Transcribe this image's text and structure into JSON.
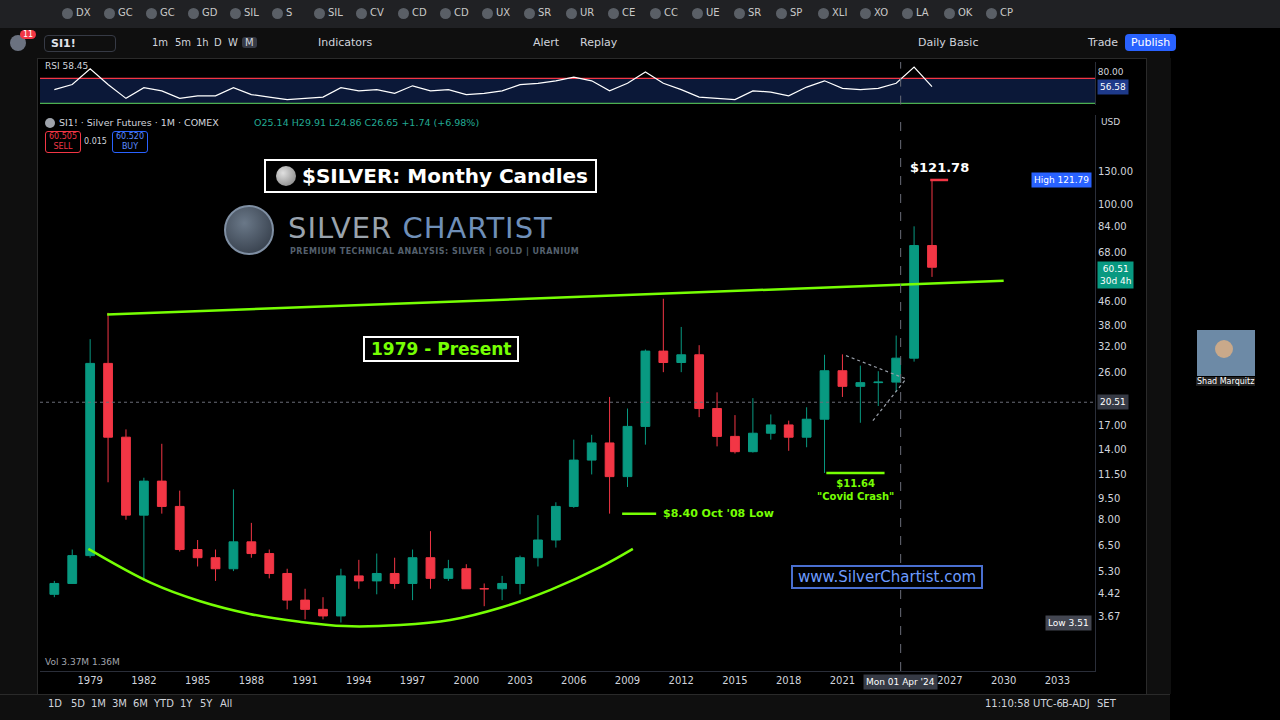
{
  "chart_data": [
    {
      "type": "candlestick",
      "title": "$SILVER: Monthy Candles",
      "subtitle": "1979 - Present",
      "log": "y",
      "grid": false,
      "x": [
        1977,
        1978,
        1979,
        1980,
        1981,
        1982,
        1983,
        1984,
        1985,
        1986,
        1987,
        1988,
        1989,
        1990,
        1991,
        1992,
        1993,
        1994,
        1995,
        1996,
        1997,
        1998,
        1999,
        2000,
        2001,
        2002,
        2003,
        2004,
        2005,
        2006,
        2007,
        2008,
        2009,
        2010,
        2011,
        2012,
        2013,
        2014,
        2015,
        2016,
        2017,
        2018,
        2019,
        2020,
        2021,
        2022,
        2023,
        2024,
        2025,
        2026
      ],
      "open": [
        4.4,
        4.8,
        6.0,
        28,
        15.5,
        8.3,
        10.9,
        8.9,
        6.3,
        5.9,
        5.4,
        6.7,
        6.1,
        5.2,
        4.2,
        3.9,
        3.7,
        5.1,
        4.9,
        5.2,
        4.8,
        5.9,
        5.0,
        5.4,
        4.6,
        4.6,
        4.8,
        5.9,
        6.8,
        8.9,
        12.9,
        14.8,
        11.3,
        16.9,
        30.9,
        28.2,
        30.0,
        19.5,
        15.6,
        13.8,
        16.0,
        17.1,
        15.5,
        17.9,
        26.4,
        23.3,
        24.0,
        24.1,
        29.2,
        72
      ],
      "high": [
        4.9,
        6.3,
        34,
        42,
        16.5,
        11.2,
        14.7,
        10.1,
        6.8,
        6.3,
        10.2,
        7.8,
        6.3,
        5.4,
        4.6,
        4.3,
        5.4,
        5.8,
        6.1,
        5.9,
        6.3,
        7.3,
        5.8,
        5.6,
        4.8,
        5.1,
        6.0,
        8.3,
        9.2,
        15.2,
        15.8,
        21.4,
        19.5,
        31.3,
        47,
        37.5,
        32.4,
        22.2,
        18.5,
        21.2,
        18.6,
        17.7,
        19.7,
        30.0,
        30.1,
        27.5,
        26.3,
        35.0,
        84,
        121.78
      ],
      "low": [
        4.3,
        4.8,
        5.9,
        10.8,
        8.0,
        4.9,
        8.4,
        6.2,
        5.5,
        4.9,
        5.3,
        5.9,
        5.0,
        3.9,
        3.6,
        3.6,
        3.51,
        4.6,
        4.4,
        4.6,
        4.2,
        4.6,
        4.9,
        4.6,
        4.0,
        4.2,
        4.4,
        5.5,
        6.4,
        8.8,
        11.5,
        8.4,
        10.4,
        14.6,
        26.1,
        26.1,
        18.2,
        14.4,
        13.6,
        13.7,
        15.2,
        13.9,
        14.3,
        11.64,
        21.4,
        17.4,
        19.9,
        22.3,
        28.4,
        56
      ],
      "close": [
        4.8,
        6.0,
        28,
        15.5,
        8.3,
        10.9,
        8.9,
        6.3,
        5.9,
        5.4,
        6.7,
        6.1,
        5.2,
        4.2,
        3.9,
        3.7,
        5.1,
        4.9,
        5.2,
        4.8,
        5.9,
        5.0,
        5.4,
        4.6,
        4.6,
        4.8,
        5.9,
        6.8,
        8.9,
        12.9,
        14.8,
        11.3,
        16.9,
        30.9,
        28.2,
        30.0,
        19.5,
        15.6,
        13.8,
        16.0,
        17.1,
        15.5,
        17.9,
        26.4,
        23.3,
        24.0,
        24.1,
        29.2,
        72,
        60.51
      ],
      "xlim": [
        1976.2,
        2035.1
      ],
      "xticks": [
        1979,
        1982,
        1985,
        1988,
        1991,
        1994,
        1997,
        2000,
        2003,
        2006,
        2009,
        2012,
        2015,
        2018,
        2021,
        2027,
        2030,
        2033
      ],
      "ylim": [
        2.38,
        205
      ],
      "yticks": [
        {
          "value": 130,
          "label": "130.00"
        },
        {
          "value": 100,
          "label": "100.00"
        },
        {
          "value": 84,
          "label": "84.00"
        },
        {
          "value": 68,
          "label": "68.00"
        },
        {
          "value": 46,
          "label": "46.00"
        },
        {
          "value": 38,
          "label": "38.00"
        },
        {
          "value": 32,
          "label": "32.00"
        },
        {
          "value": 26,
          "label": "26.00"
        },
        {
          "value": 17,
          "label": "17.00"
        },
        {
          "value": 14,
          "label": "14.00"
        },
        {
          "value": 11.5,
          "label": "11.50"
        },
        {
          "value": 9.5,
          "label": "9.50"
        },
        {
          "value": 8,
          "label": "8.00"
        },
        {
          "value": 6.5,
          "label": "6.50"
        },
        {
          "value": 5.3,
          "label": "5.30"
        },
        {
          "value": 4.42,
          "label": "4.42"
        },
        {
          "value": 3.67,
          "label": "3.67"
        }
      ],
      "trend_lines": [
        {
          "x": [
            1979.95,
            2030
          ],
          "values": [
            41.4,
            54.3
          ],
          "color": "#76ff03",
          "line_style": "solid"
        },
        {
          "x": [
            1978.9,
            1982.4,
            1985.1,
            1987.9,
            1990.7,
            1993.2,
            1996.3,
            1999.1,
            2001.9,
            2004.7,
            2007.5,
            2009.3
          ],
          "values": [
            6.33,
            4.82,
            4.17,
            3.76,
            3.53,
            3.41,
            3.44,
            3.58,
            3.95,
            4.56,
            5.48,
            6.33
          ],
          "color": "#76ff03",
          "line_style": "solid"
        },
        {
          "x": [
            2021.2,
            2024.5
          ],
          "values": [
            29.8,
            24.8
          ],
          "color": "#9aa0aa",
          "line_style": "dotted"
        },
        {
          "x": [
            2022.7,
            2024.5
          ],
          "values": [
            17.7,
            24.5
          ],
          "color": "#9aa0aa",
          "line_style": "dotted"
        }
      ],
      "levels": [
        {
          "label": "$121.78",
          "value": 121.78,
          "x": [
            2025.9,
            2026.9
          ],
          "color": "#f23645"
        },
        {
          "label": "$8.40 Oct '08 Low",
          "value": 8.4,
          "x": [
            2008.7,
            2010.6
          ],
          "color": "#76ff03"
        },
        {
          "label": "$11.64",
          "note": "\"Covid Crash\"",
          "value": 11.64,
          "x": [
            2020.1,
            2023.35
          ],
          "color": "#76ff03"
        }
      ],
      "price_tags": [
        {
          "value": 121.79,
          "label": "High 121.79"
        },
        {
          "value": 60.51,
          "label": "60.51",
          "note": "30d 4h"
        },
        {
          "value": 3.51,
          "label": "Low 3.51"
        }
      ],
      "crosshair": {
        "x": 2024.25,
        "y": 20.51,
        "x_label": "Mon 01 Apr '24",
        "y_label": "20.51"
      },
      "header": {
        "symbol": "SI1! · Silver Futures · 1M · COMEX",
        "ohlc": "O25.14 H29.91 L24.86 C26.65 +1.74 (+6.98%)"
      },
      "watermark": {
        "text": "SILVER CHARTIST",
        "subtitle": "PREMIUM TECHNICAL ANALYSIS: SILVER | GOLD | URANIUM"
      },
      "website": "www.SilverChartist.com",
      "volume_label": "Vol 3.37M 1.36M",
      "currency": "USD"
    },
    {
      "type": "line",
      "title": "RSI",
      "header_value": "58.45",
      "grid": false,
      "color": "#ffffff",
      "x": [
        1977,
        1978,
        1979,
        1980,
        1981,
        1982,
        1983,
        1984,
        1985,
        1986,
        1987,
        1988,
        1989,
        1990,
        1991,
        1992,
        1993,
        1994,
        1995,
        1996,
        1997,
        1998,
        1999,
        2000,
        2001,
        2002,
        2003,
        2004,
        2005,
        2006,
        2007,
        2008,
        2009,
        2010,
        2011,
        2012,
        2013,
        2014,
        2015,
        2016,
        2017,
        2018,
        2019,
        2020,
        2021,
        2022,
        2023,
        2024,
        2025,
        2026
      ],
      "values": [
        52,
        60,
        85,
        60,
        38,
        55,
        50,
        38,
        42,
        42,
        55,
        44,
        40,
        36,
        38,
        40,
        55,
        50,
        52,
        46,
        58,
        50,
        52,
        44,
        46,
        50,
        60,
        62,
        66,
        72,
        66,
        50,
        62,
        80,
        62,
        52,
        40,
        38,
        36,
        50,
        48,
        42,
        56,
        66,
        54,
        52,
        54,
        62,
        88,
        56.58
      ],
      "xlim": [
        1976.2,
        2035.1
      ],
      "ylim": [
        28,
        96
      ],
      "yticks": [
        {
          "value": 80,
          "label": "80.00"
        }
      ],
      "levels": [
        {
          "value": 70,
          "color": "#f23645"
        },
        {
          "value": 30,
          "color": "#4caf50"
        }
      ],
      "current": {
        "value": 56.58,
        "label": "56.58"
      }
    }
  ],
  "screen": {
    "tabs": [
      "DX",
      "GC",
      "GC",
      "GD",
      "SIL",
      "S",
      "SIL",
      "CV",
      "CD",
      "CD",
      "UX",
      "SR",
      "UR",
      "CE",
      "CC",
      "UE",
      "SR",
      "SP",
      "XLI",
      "XO",
      "LA",
      "OK",
      "CP"
    ],
    "badge": "11",
    "symbol": "SI1!",
    "timeframes": [
      "1m",
      "5m",
      "1h",
      "D",
      "W",
      "M"
    ],
    "toolbar": [
      "Indicators",
      "Alert",
      "Replay"
    ],
    "layout_name": "Daily Basic",
    "buttons": [
      "Trade",
      "Publish"
    ],
    "ranges": [
      "1D",
      "5D",
      "1M",
      "3M",
      "6M",
      "YTD",
      "1Y",
      "5Y",
      "All"
    ],
    "clock": "11:10:58 UTC-6",
    "flags": [
      "B-ADJ",
      "SET"
    ],
    "trade": {
      "sell": "60.505",
      "sell_label": "SELL",
      "spread": "0.015",
      "buy": "60.520",
      "buy_label": "BUY"
    },
    "presenter": "Shad Marquitz"
  }
}
